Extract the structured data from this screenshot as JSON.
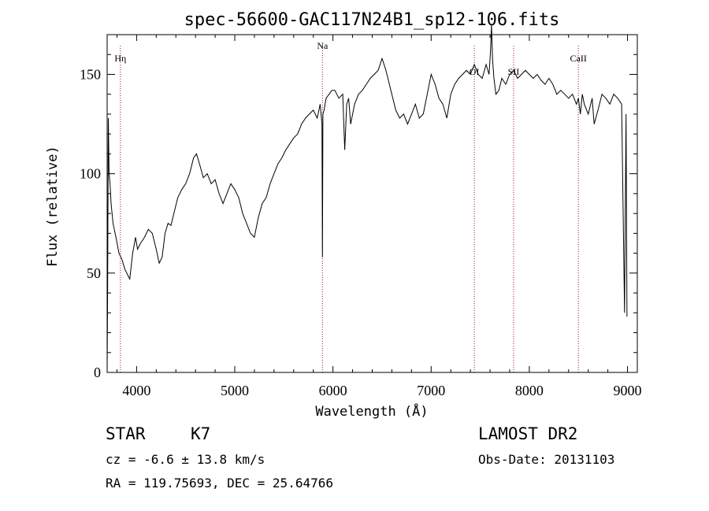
{
  "chart_data": {
    "type": "line",
    "title": "spec-56600-GAC117N24B1_sp12-106.fits",
    "xlabel": "Wavelength (Å)",
    "ylabel": "Flux (relative)",
    "xlim": [
      3700,
      9100
    ],
    "ylim": [
      0,
      170
    ],
    "xticks": [
      4000,
      5000,
      6000,
      7000,
      8000,
      9000
    ],
    "yticks": [
      0,
      50,
      100,
      150
    ],
    "grid": false,
    "series": [
      {
        "x": [
          3700,
          3705,
          3712,
          3720,
          3730,
          3740,
          3760,
          3790,
          3820,
          3850,
          3880,
          3900,
          3930,
          3960,
          3990,
          4010,
          4040,
          4080,
          4120,
          4160,
          4200,
          4230,
          4260,
          4290,
          4320,
          4350,
          4380,
          4420,
          4460,
          4500,
          4540,
          4580,
          4610,
          4640,
          4680,
          4720,
          4760,
          4800,
          4840,
          4880,
          4920,
          4960,
          5000,
          5040,
          5080,
          5120,
          5160,
          5200,
          5240,
          5280,
          5320,
          5360,
          5400,
          5440,
          5480,
          5520,
          5560,
          5600,
          5640,
          5680,
          5720,
          5760,
          5800,
          5840,
          5870,
          5888,
          5893,
          5898,
          5910,
          5930,
          5960,
          5990,
          6020,
          6060,
          6100,
          6120,
          6140,
          6160,
          6180,
          6220,
          6260,
          6300,
          6340,
          6380,
          6420,
          6460,
          6500,
          6520,
          6540,
          6560,
          6600,
          6640,
          6680,
          6720,
          6760,
          6800,
          6840,
          6880,
          6920,
          6960,
          7000,
          7040,
          7080,
          7120,
          7160,
          7200,
          7240,
          7280,
          7320,
          7360,
          7400,
          7440,
          7480,
          7520,
          7560,
          7590,
          7605,
          7615,
          7625,
          7640,
          7660,
          7690,
          7720,
          7760,
          7800,
          7840,
          7880,
          7920,
          7960,
          8000,
          8040,
          8080,
          8120,
          8160,
          8200,
          8240,
          8280,
          8320,
          8360,
          8400,
          8440,
          8480,
          8500,
          8520,
          8540,
          8560,
          8600,
          8640,
          8660,
          8700,
          8740,
          8780,
          8820,
          8860,
          8900,
          8940,
          8970,
          8985,
          8995
        ],
        "y": [
          0,
          40,
          128,
          100,
          95,
          85,
          75,
          68,
          60,
          57,
          52,
          50,
          47,
          60,
          68,
          62,
          65,
          68,
          72,
          70,
          62,
          55,
          58,
          70,
          75,
          74,
          80,
          88,
          92,
          95,
          100,
          108,
          110,
          105,
          98,
          100,
          95,
          97,
          90,
          85,
          90,
          95,
          92,
          88,
          80,
          75,
          70,
          68,
          78,
          85,
          88,
          95,
          100,
          105,
          108,
          112,
          115,
          118,
          120,
          125,
          128,
          130,
          132,
          128,
          135,
          125,
          58,
          130,
          132,
          138,
          140,
          142,
          142,
          138,
          140,
          112,
          135,
          138,
          125,
          135,
          140,
          142,
          145,
          148,
          150,
          152,
          158,
          155,
          152,
          148,
          140,
          132,
          128,
          130,
          125,
          130,
          135,
          128,
          130,
          140,
          150,
          145,
          138,
          135,
          128,
          140,
          145,
          148,
          150,
          152,
          150,
          155,
          150,
          148,
          155,
          150,
          162,
          175,
          158,
          148,
          140,
          142,
          148,
          145,
          150,
          152,
          148,
          150,
          152,
          150,
          148,
          150,
          147,
          145,
          148,
          145,
          140,
          142,
          140,
          138,
          140,
          135,
          138,
          130,
          140,
          135,
          130,
          138,
          125,
          132,
          140,
          138,
          135,
          140,
          138,
          135,
          30,
          130,
          28
        ]
      }
    ],
    "annotations": [
      {
        "label": "Hη",
        "x": 3835
      },
      {
        "label": "Na",
        "x": 5893
      },
      {
        "label": "OI",
        "x": 7440
      },
      {
        "label": "SII",
        "x": 7840
      },
      {
        "label": "CaII",
        "x": 8500
      }
    ]
  },
  "info": {
    "object_class": "STAR",
    "subclass": "K7",
    "survey": "LAMOST DR2",
    "cz": "cz = -6.6 ± 13.8 km/s",
    "obs_date": "Obs-Date: 20131103",
    "coords": "RA = 119.75693, DEC =  25.64766"
  },
  "colors": {
    "spectrum": "#000000",
    "marker_line": "#8b1a1a",
    "axis": "#000000"
  }
}
